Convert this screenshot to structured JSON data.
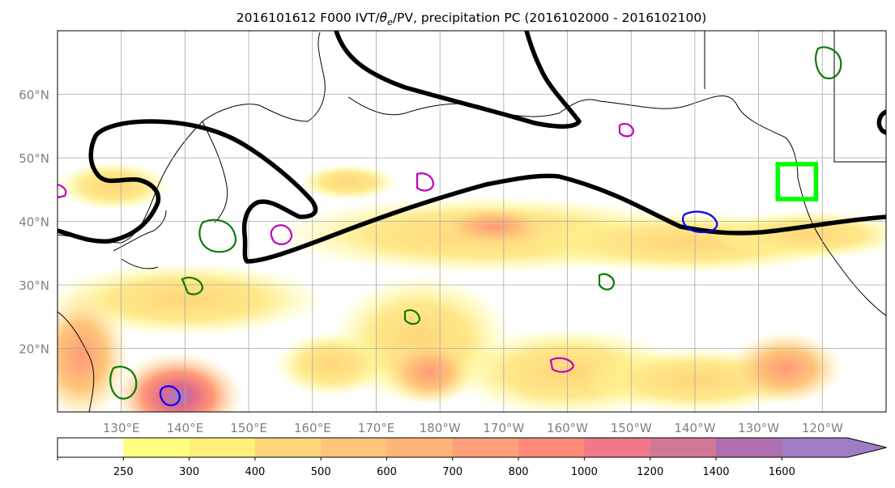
{
  "title": "2016101612 F000 IVT/θe/PV, precipitation PC (2016102000 - 2016102100)",
  "title_parts": {
    "pre": "2016101612 F000 IVT/",
    "theta": "θ",
    "sub": "e",
    "post": "/PV, precipitation PC (2016102000 - 2016102100)"
  },
  "map": {
    "projection": "PlateCarree",
    "lon_range": [
      120,
      250
    ],
    "lat_range": [
      10,
      70
    ],
    "lon_ticks": [
      {
        "lon": 130,
        "label": "130°E"
      },
      {
        "lon": 140,
        "label": "140°E"
      },
      {
        "lon": 150,
        "label": "150°E"
      },
      {
        "lon": 160,
        "label": "160°E"
      },
      {
        "lon": 170,
        "label": "170°E"
      },
      {
        "lon": 180,
        "label": "180°W"
      },
      {
        "lon": 190,
        "label": "170°W"
      },
      {
        "lon": 200,
        "label": "160°W"
      },
      {
        "lon": 210,
        "label": "150°W"
      },
      {
        "lon": 220,
        "label": "140°W"
      },
      {
        "lon": 230,
        "label": "130°W"
      },
      {
        "lon": 240,
        "label": "120°W"
      }
    ],
    "lat_ticks": [
      {
        "lat": 20,
        "label": "20°N"
      },
      {
        "lat": 30,
        "label": "30°N"
      },
      {
        "lat": 40,
        "label": "40°N"
      },
      {
        "lat": 50,
        "label": "50°N"
      },
      {
        "lat": 60,
        "label": "60°N"
      }
    ],
    "grid": true,
    "target_box": {
      "lon": [
        233,
        239
      ],
      "lat": [
        43.5,
        49
      ],
      "color": "#00ff00"
    }
  },
  "colorbar": {
    "ticks": [
      "250",
      "300",
      "400",
      "500",
      "600",
      "700",
      "800",
      "1000",
      "1200",
      "1400",
      "1600"
    ],
    "colors": [
      "#ffffff",
      "#ffff80",
      "#fff07a",
      "#ffd67a",
      "#ffc47a",
      "#ffb47a",
      "#ffa07a",
      "#ff8a78",
      "#f07888",
      "#d07898",
      "#b070b0",
      "#a07cc4"
    ],
    "extend": "max"
  },
  "colors": {
    "ivt_levels": [
      "#ffff80",
      "#ffe078",
      "#ffc47a",
      "#ffa07a",
      "#ff8078",
      "#e06a8a",
      "#b070b0"
    ],
    "theta_contour": "#000000",
    "pv_contour": "#0a7a0a",
    "blue_contour": "#0000ff",
    "magenta_contour": "#c000c0",
    "coast": "#000000"
  }
}
